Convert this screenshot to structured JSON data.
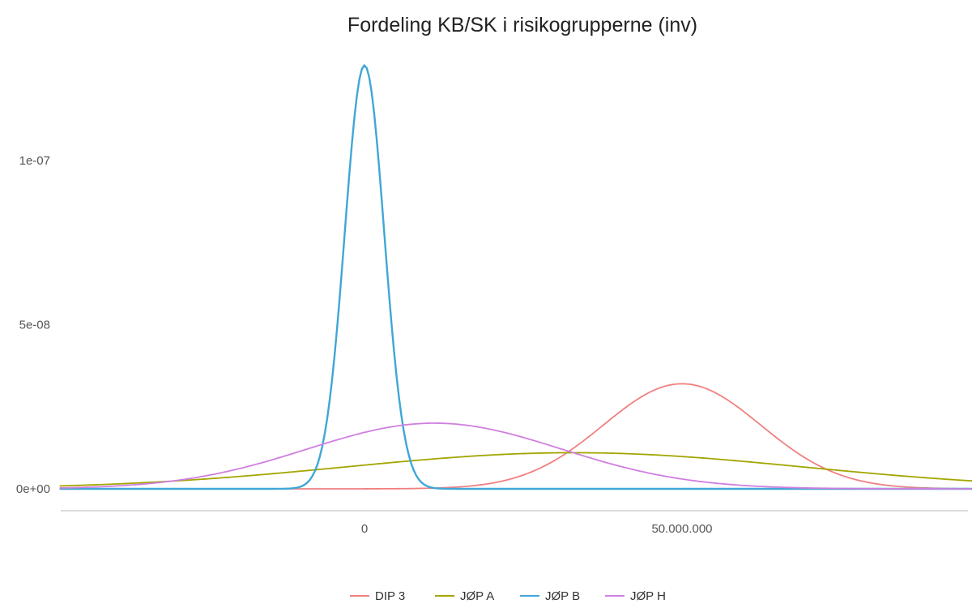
{
  "chart_data": {
    "type": "line",
    "title": "Fordeling KB/SK i risikogrupperne (inv)",
    "xlabel": "",
    "ylabel": "",
    "xlim": [
      -50000000,
      108000000
    ],
    "ylim": [
      -3.5e-09,
      1.35e-07
    ],
    "x_ticks": [
      {
        "value": 0,
        "label": "0"
      },
      {
        "value": 50000000,
        "label": "50.000.000"
      }
    ],
    "y_ticks": [
      {
        "value": 0,
        "label": "0e+00"
      },
      {
        "value": 5e-08,
        "label": "5e-08"
      },
      {
        "value": 1e-07,
        "label": "1e-07"
      }
    ],
    "grid": false,
    "legend_position": "bottom",
    "x_range": [
      -48000000,
      108000000
    ],
    "series": [
      {
        "name": "DIP 3",
        "color": "#F08080",
        "distribution": "normal",
        "mean": 50000000,
        "sd": 12400000,
        "peak_density": 3.2e-08
      },
      {
        "name": "JØP A",
        "color": "#A3A500",
        "distribution": "normal",
        "mean": 33000000,
        "sd": 36000000,
        "peak_density": 1.1e-08
      },
      {
        "name": "JØP B",
        "color": "#3FA7D6",
        "distribution": "normal",
        "mean": 0,
        "sd": 3100000,
        "peak_density": 1.29e-07
      },
      {
        "name": "JØP H",
        "color": "#D07FE0",
        "distribution": "normal",
        "mean": 11000000,
        "sd": 20000000,
        "peak_density": 2e-08
      }
    ]
  }
}
